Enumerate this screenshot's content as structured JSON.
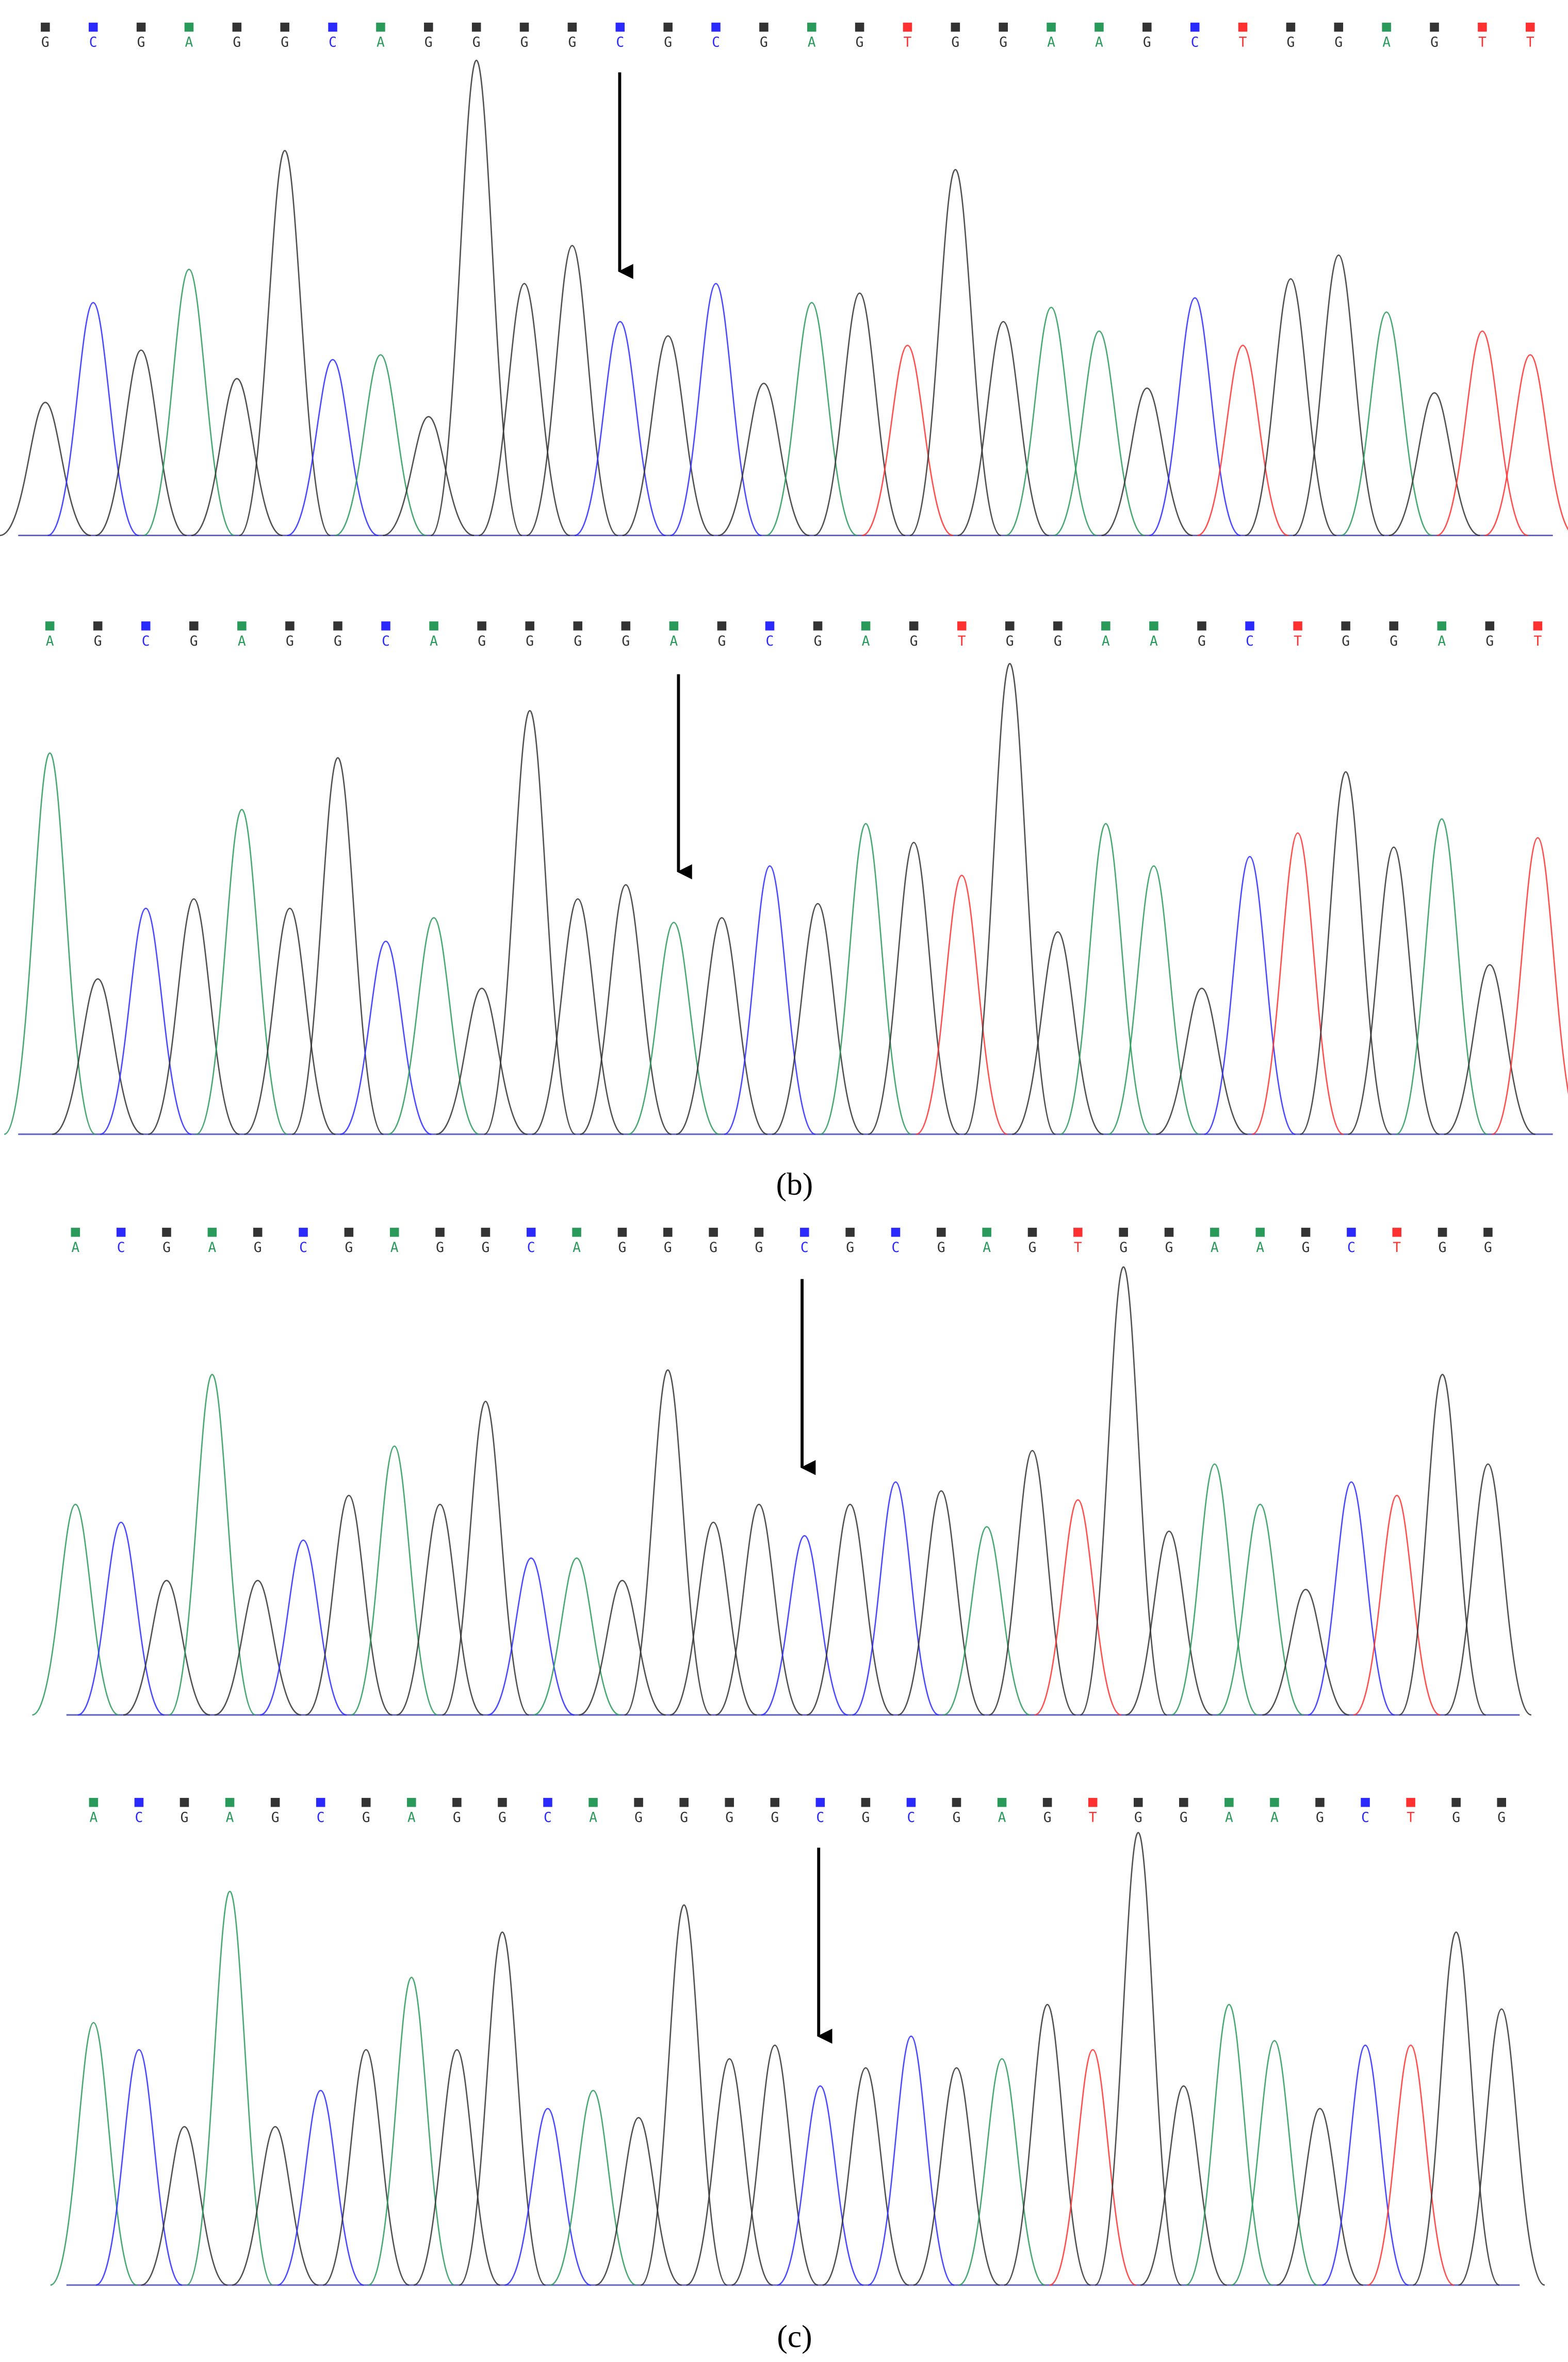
{
  "panels": [
    {
      "bases": [
        "G",
        "C",
        "G",
        "A",
        "G",
        "G",
        "C",
        "A",
        "G",
        "G",
        "G",
        "G",
        "C",
        "G",
        "C",
        "G",
        "A",
        "G",
        "T",
        "G",
        "G",
        "A",
        "A",
        "G",
        "C",
        "T",
        "G",
        "G",
        "A",
        "G",
        "T",
        "T"
      ],
      "heights": [
        28,
        49,
        39,
        56,
        33,
        81,
        37,
        38,
        25,
        100,
        53,
        61,
        45,
        42,
        53,
        32,
        49,
        51,
        40,
        77,
        45,
        48,
        43,
        31,
        50,
        40,
        54,
        59,
        47,
        30,
        43,
        38
      ]
    },
    {
      "bases": [
        "A",
        "G",
        "C",
        "G",
        "A",
        "G",
        "G",
        "C",
        "A",
        "G",
        "G",
        "G",
        "G",
        "A",
        "G",
        "C",
        "G",
        "A",
        "G",
        "T",
        "G",
        "G",
        "A",
        "A",
        "G",
        "C",
        "T",
        "G",
        "G",
        "A",
        "G",
        "T"
      ],
      "heights": [
        81,
        33,
        48,
        50,
        69,
        48,
        80,
        41,
        46,
        31,
        90,
        50,
        53,
        45,
        46,
        57,
        49,
        66,
        62,
        55,
        100,
        43,
        66,
        57,
        31,
        59,
        64,
        77,
        61,
        67,
        36,
        63
      ]
    },
    {
      "bases": [
        "A",
        "C",
        "G",
        "A",
        "G",
        "C",
        "G",
        "A",
        "G",
        "G",
        "C",
        "A",
        "G",
        "G",
        "G",
        "G",
        "C",
        "G",
        "C",
        "G",
        "A",
        "G",
        "T",
        "G",
        "G",
        "A",
        "A",
        "G",
        "C",
        "T",
        "G",
        "G"
      ],
      "heights": [
        47,
        43,
        30,
        76,
        30,
        39,
        49,
        60,
        47,
        70,
        35,
        35,
        30,
        77,
        43,
        47,
        40,
        47,
        52,
        50,
        42,
        59,
        48,
        100,
        41,
        56,
        47,
        28,
        52,
        49,
        76,
        56
      ]
    },
    {
      "bases": [
        "A",
        "C",
        "G",
        "A",
        "G",
        "C",
        "G",
        "A",
        "G",
        "G",
        "C",
        "A",
        "G",
        "G",
        "G",
        "G",
        "C",
        "G",
        "C",
        "G",
        "A",
        "G",
        "T",
        "G",
        "G",
        "A",
        "A",
        "G",
        "C",
        "T",
        "G",
        "G"
      ],
      "heights": [
        58,
        52,
        35,
        87,
        35,
        43,
        52,
        68,
        52,
        78,
        39,
        43,
        37,
        84,
        50,
        53,
        44,
        48,
        55,
        48,
        50,
        62,
        52,
        100,
        44,
        62,
        54,
        39,
        53,
        53,
        78,
        61
      ]
    }
  ],
  "base_colors": {
    "A": "#2a9a5a",
    "C": "#2a2aff",
    "G": "#333333",
    "T": "#ff3030"
  },
  "captions": [
    "(b)",
    "(c)"
  ]
}
